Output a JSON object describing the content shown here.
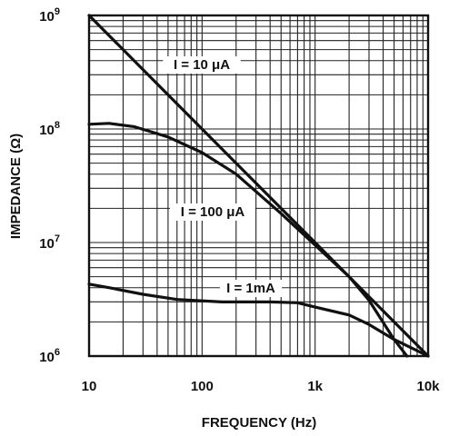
{
  "chart_data": {
    "type": "line",
    "xlabel": "FREQUENCY (Hz)",
    "ylabel": "IMPEDANCE (Ω)",
    "x_scale": "log",
    "y_scale": "log",
    "xlim": [
      10,
      10000
    ],
    "ylim": [
      1000000,
      1000000000
    ],
    "grid": true,
    "x_ticks": [
      {
        "value": 10,
        "label": "10"
      },
      {
        "value": 100,
        "label": "100"
      },
      {
        "value": 1000,
        "label": "1k"
      },
      {
        "value": 10000,
        "label": "10k"
      }
    ],
    "y_ticks": [
      {
        "value": 1000000,
        "base": "10",
        "exp": "6"
      },
      {
        "value": 10000000,
        "base": "10",
        "exp": "7"
      },
      {
        "value": 100000000,
        "base": "10",
        "exp": "8"
      },
      {
        "value": 1000000000,
        "base": "10",
        "exp": "9"
      }
    ],
    "series": [
      {
        "name": "I = 10 μA",
        "points": [
          [
            10,
            1000000000
          ],
          [
            100,
            100000000
          ],
          [
            1000,
            10000000
          ],
          [
            10000,
            1000000
          ]
        ]
      },
      {
        "name": "I = 100 μA",
        "points": [
          [
            10,
            110000000
          ],
          [
            15,
            112000000
          ],
          [
            25,
            105000000
          ],
          [
            50,
            85000000
          ],
          [
            100,
            62000000
          ],
          [
            200,
            40000000
          ],
          [
            500,
            18000000
          ],
          [
            1000,
            9500000
          ],
          [
            2000,
            5000000
          ],
          [
            3000,
            3100000
          ],
          [
            5000,
            1400000
          ],
          [
            6500,
            1000000
          ]
        ]
      },
      {
        "name": "I = 1mA",
        "points": [
          [
            10,
            4300000
          ],
          [
            15,
            4000000
          ],
          [
            30,
            3500000
          ],
          [
            60,
            3150000
          ],
          [
            150,
            3000000
          ],
          [
            400,
            3000000
          ],
          [
            700,
            2950000
          ],
          [
            1000,
            2700000
          ],
          [
            2000,
            2300000
          ],
          [
            3000,
            1900000
          ],
          [
            5000,
            1400000
          ],
          [
            10000,
            1000000
          ]
        ]
      }
    ]
  }
}
